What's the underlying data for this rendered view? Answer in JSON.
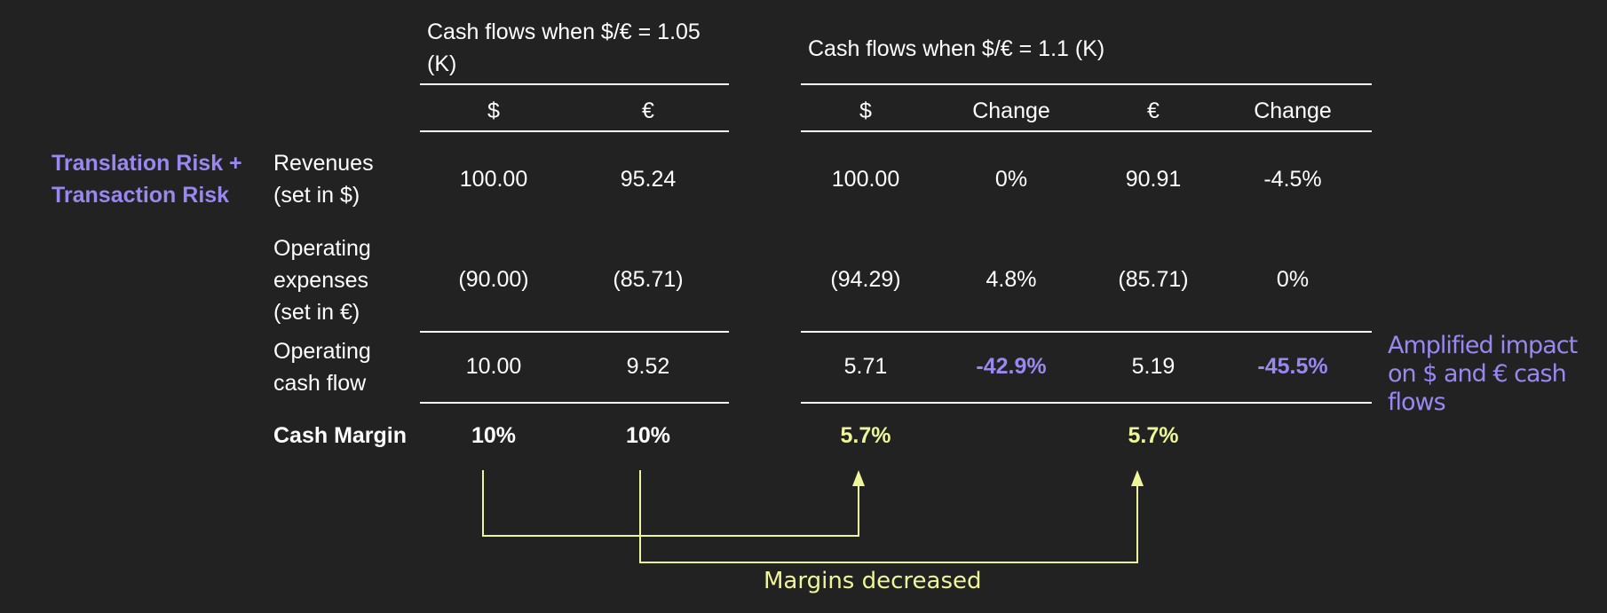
{
  "header": {
    "group1_title": "Cash flows when $/€ = 1.05 (K)",
    "group2_title": "Cash flows when $/€ = 1.1 (K)",
    "columns": [
      "$",
      "€",
      "$",
      "Change",
      "€",
      "Change"
    ]
  },
  "side_label": "Translation Risk +\nTransaction Risk",
  "rows": [
    {
      "label": "Revenues\n(set in $)",
      "values": [
        "100.00",
        "95.24",
        "100.00",
        "0%",
        "90.91",
        "-4.5%"
      ]
    },
    {
      "label": "Operating\nexpenses\n(set in €)",
      "values": [
        "(90.00)",
        "(85.71)",
        "(94.29)",
        "4.8%",
        "(85.71)",
        "0%"
      ]
    },
    {
      "label": "Operating\ncash flow",
      "values": [
        "10.00",
        "9.52",
        "5.71",
        "-42.9%",
        "5.19",
        "-45.5%"
      ]
    },
    {
      "label": "Cash Margin",
      "values": [
        "10%",
        "10%",
        "5.7%",
        "",
        "5.7%",
        ""
      ]
    }
  ],
  "impact_note": "Amplified impact\non $ and € cash\nflows",
  "margins_note": "Margins decreased",
  "colors": {
    "background": "#222222",
    "text": "#ffffff",
    "accent_purple": "#9a87f0",
    "accent_yellow": "#eef59a"
  }
}
